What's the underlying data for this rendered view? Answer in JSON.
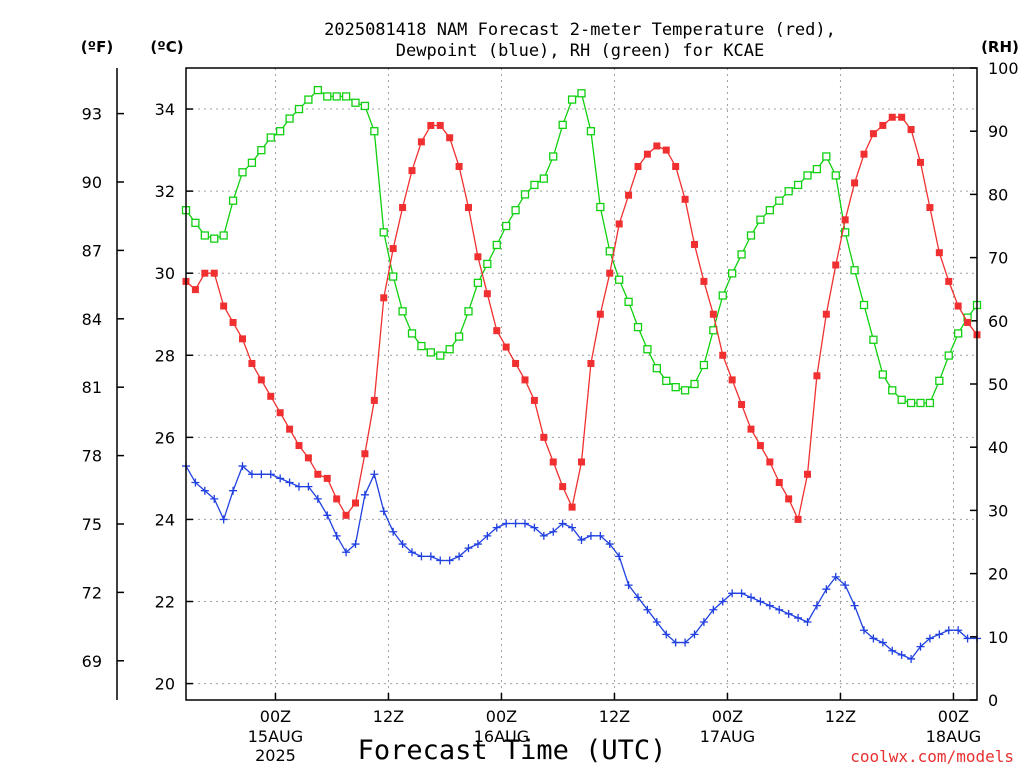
{
  "chart_data": {
    "type": "line",
    "title": [
      "2025081418 NAM Forecast 2-meter Temperature (red),",
      "Dewpoint (blue), RH (green) for KCAE"
    ],
    "xlabel": "Forecast Time (UTC)",
    "x_range_hours": [
      -9.5,
      74.5
    ],
    "x_ticks": [
      {
        "h": 0,
        "label": "00Z",
        "sub": [
          "15AUG",
          "2025"
        ]
      },
      {
        "h": 12,
        "label": "12Z",
        "sub": []
      },
      {
        "h": 24,
        "label": "00Z",
        "sub": [
          "16AUG"
        ]
      },
      {
        "h": 36,
        "label": "12Z",
        "sub": []
      },
      {
        "h": 48,
        "label": "00Z",
        "sub": [
          "17AUG"
        ]
      },
      {
        "h": 60,
        "label": "12Z",
        "sub": []
      },
      {
        "h": 72,
        "label": "00Z",
        "sub": [
          "18AUG"
        ]
      }
    ],
    "y_left_c": {
      "unit": "(ºC)",
      "range": [
        19.6,
        35.0
      ],
      "ticks": [
        20,
        22,
        24,
        26,
        28,
        30,
        32,
        34
      ]
    },
    "y_left_f": {
      "unit": "(ºF)",
      "ticks": [
        69,
        72,
        75,
        78,
        81,
        84,
        87,
        90,
        93
      ]
    },
    "y_right_rh": {
      "unit": "(RH)",
      "range": [
        0,
        100
      ],
      "ticks": [
        0,
        10,
        20,
        30,
        40,
        50,
        60,
        70,
        80,
        90,
        100
      ]
    },
    "grid": true,
    "series": [
      {
        "name": "Temperature",
        "color": "#f03030",
        "marker": "filled-square",
        "axis": "left_c",
        "points": [
          [
            -9.5,
            29.8
          ],
          [
            -8.5,
            29.6
          ],
          [
            -7.5,
            30.0
          ],
          [
            -6.5,
            30.0
          ],
          [
            -5.5,
            29.2
          ],
          [
            -4.5,
            28.8
          ],
          [
            -3.5,
            28.4
          ],
          [
            -2.5,
            27.8
          ],
          [
            -1.5,
            27.4
          ],
          [
            -0.5,
            27.0
          ],
          [
            0.5,
            26.6
          ],
          [
            1.5,
            26.2
          ],
          [
            2.5,
            25.8
          ],
          [
            3.5,
            25.5
          ],
          [
            4.5,
            25.1
          ],
          [
            5.5,
            25.0
          ],
          [
            6.5,
            24.5
          ],
          [
            7.5,
            24.1
          ],
          [
            8.5,
            24.4
          ],
          [
            9.5,
            25.6
          ],
          [
            10.5,
            26.9
          ],
          [
            11.5,
            29.4
          ],
          [
            12.5,
            30.6
          ],
          [
            13.5,
            31.6
          ],
          [
            14.5,
            32.5
          ],
          [
            15.5,
            33.2
          ],
          [
            16.5,
            33.6
          ],
          [
            17.5,
            33.6
          ],
          [
            18.5,
            33.3
          ],
          [
            19.5,
            32.6
          ],
          [
            20.5,
            31.6
          ],
          [
            21.5,
            30.4
          ],
          [
            22.5,
            29.5
          ],
          [
            23.5,
            28.6
          ],
          [
            24.5,
            28.2
          ],
          [
            25.5,
            27.8
          ],
          [
            26.5,
            27.4
          ],
          [
            27.5,
            26.9
          ],
          [
            28.5,
            26.0
          ],
          [
            29.5,
            25.4
          ],
          [
            30.5,
            24.8
          ],
          [
            31.5,
            24.3
          ],
          [
            32.5,
            25.4
          ],
          [
            33.5,
            27.8
          ],
          [
            34.5,
            29.0
          ],
          [
            35.5,
            30.0
          ],
          [
            36.5,
            31.2
          ],
          [
            37.5,
            31.9
          ],
          [
            38.5,
            32.6
          ],
          [
            39.5,
            32.9
          ],
          [
            40.5,
            33.1
          ],
          [
            41.5,
            33.0
          ],
          [
            42.5,
            32.6
          ],
          [
            43.5,
            31.8
          ],
          [
            44.5,
            30.7
          ],
          [
            45.5,
            29.8
          ],
          [
            46.5,
            29.0
          ],
          [
            47.5,
            28.0
          ],
          [
            48.5,
            27.4
          ],
          [
            49.5,
            26.8
          ],
          [
            50.5,
            26.2
          ],
          [
            51.5,
            25.8
          ],
          [
            52.5,
            25.4
          ],
          [
            53.5,
            24.9
          ],
          [
            54.5,
            24.5
          ],
          [
            55.5,
            24.0
          ],
          [
            56.5,
            25.1
          ],
          [
            57.5,
            27.5
          ],
          [
            58.5,
            29.0
          ],
          [
            59.5,
            30.2
          ],
          [
            60.5,
            31.3
          ],
          [
            61.5,
            32.2
          ],
          [
            62.5,
            32.9
          ],
          [
            63.5,
            33.4
          ],
          [
            64.5,
            33.6
          ],
          [
            65.5,
            33.8
          ],
          [
            66.5,
            33.8
          ],
          [
            67.5,
            33.5
          ],
          [
            68.5,
            32.7
          ],
          [
            69.5,
            31.6
          ],
          [
            70.5,
            30.5
          ],
          [
            71.5,
            29.8
          ],
          [
            72.5,
            29.2
          ],
          [
            73.5,
            28.8
          ],
          [
            74.5,
            28.5
          ]
        ]
      },
      {
        "name": "Dewpoint",
        "color": "#2040e0",
        "marker": "plus",
        "axis": "left_c",
        "points": [
          [
            -9.5,
            25.3
          ],
          [
            -8.5,
            24.9
          ],
          [
            -7.5,
            24.7
          ],
          [
            -6.5,
            24.5
          ],
          [
            -5.5,
            24.0
          ],
          [
            -4.5,
            24.7
          ],
          [
            -3.5,
            25.3
          ],
          [
            -2.5,
            25.1
          ],
          [
            -1.5,
            25.1
          ],
          [
            -0.5,
            25.1
          ],
          [
            0.5,
            25.0
          ],
          [
            1.5,
            24.9
          ],
          [
            2.5,
            24.8
          ],
          [
            3.5,
            24.8
          ],
          [
            4.5,
            24.5
          ],
          [
            5.5,
            24.1
          ],
          [
            6.5,
            23.6
          ],
          [
            7.5,
            23.2
          ],
          [
            8.5,
            23.4
          ],
          [
            9.5,
            24.6
          ],
          [
            10.5,
            25.1
          ],
          [
            11.5,
            24.2
          ],
          [
            12.5,
            23.7
          ],
          [
            13.5,
            23.4
          ],
          [
            14.5,
            23.2
          ],
          [
            15.5,
            23.1
          ],
          [
            16.5,
            23.1
          ],
          [
            17.5,
            23.0
          ],
          [
            18.5,
            23.0
          ],
          [
            19.5,
            23.1
          ],
          [
            20.5,
            23.3
          ],
          [
            21.5,
            23.4
          ],
          [
            22.5,
            23.6
          ],
          [
            23.5,
            23.8
          ],
          [
            24.5,
            23.9
          ],
          [
            25.5,
            23.9
          ],
          [
            26.5,
            23.9
          ],
          [
            27.5,
            23.8
          ],
          [
            28.5,
            23.6
          ],
          [
            29.5,
            23.7
          ],
          [
            30.5,
            23.9
          ],
          [
            31.5,
            23.8
          ],
          [
            32.5,
            23.5
          ],
          [
            33.5,
            23.6
          ],
          [
            34.5,
            23.6
          ],
          [
            35.5,
            23.4
          ],
          [
            36.5,
            23.1
          ],
          [
            37.5,
            22.4
          ],
          [
            38.5,
            22.1
          ],
          [
            39.5,
            21.8
          ],
          [
            40.5,
            21.5
          ],
          [
            41.5,
            21.2
          ],
          [
            42.5,
            21.0
          ],
          [
            43.5,
            21.0
          ],
          [
            44.5,
            21.2
          ],
          [
            45.5,
            21.5
          ],
          [
            46.5,
            21.8
          ],
          [
            47.5,
            22.0
          ],
          [
            48.5,
            22.2
          ],
          [
            49.5,
            22.2
          ],
          [
            50.5,
            22.1
          ],
          [
            51.5,
            22.0
          ],
          [
            52.5,
            21.9
          ],
          [
            53.5,
            21.8
          ],
          [
            54.5,
            21.7
          ],
          [
            55.5,
            21.6
          ],
          [
            56.5,
            21.5
          ],
          [
            57.5,
            21.9
          ],
          [
            58.5,
            22.3
          ],
          [
            59.5,
            22.6
          ],
          [
            60.5,
            22.4
          ],
          [
            61.5,
            21.9
          ],
          [
            62.5,
            21.3
          ],
          [
            63.5,
            21.1
          ],
          [
            64.5,
            21.0
          ],
          [
            65.5,
            20.8
          ],
          [
            66.5,
            20.7
          ],
          [
            67.5,
            20.6
          ],
          [
            68.5,
            20.9
          ],
          [
            69.5,
            21.1
          ],
          [
            70.5,
            21.2
          ],
          [
            71.5,
            21.3
          ],
          [
            72.5,
            21.3
          ],
          [
            73.5,
            21.1
          ],
          [
            74.5,
            21.1
          ]
        ]
      },
      {
        "name": "RH",
        "color": "#10d010",
        "marker": "open-square",
        "axis": "right_rh",
        "points": [
          [
            -9.5,
            77.5
          ],
          [
            -8.5,
            75.5
          ],
          [
            -7.5,
            73.5
          ],
          [
            -6.5,
            73.0
          ],
          [
            -5.5,
            73.5
          ],
          [
            -4.5,
            79.0
          ],
          [
            -3.5,
            83.5
          ],
          [
            -2.5,
            85.0
          ],
          [
            -1.5,
            87.0
          ],
          [
            -0.5,
            89.0
          ],
          [
            0.5,
            90.0
          ],
          [
            1.5,
            92.0
          ],
          [
            2.5,
            93.5
          ],
          [
            3.5,
            95.0
          ],
          [
            4.5,
            96.5
          ],
          [
            5.5,
            95.5
          ],
          [
            6.5,
            95.5
          ],
          [
            7.5,
            95.5
          ],
          [
            8.5,
            94.5
          ],
          [
            9.5,
            94.0
          ],
          [
            10.5,
            90.0
          ],
          [
            11.5,
            74.0
          ],
          [
            12.5,
            67.0
          ],
          [
            13.5,
            61.5
          ],
          [
            14.5,
            58.0
          ],
          [
            15.5,
            56.0
          ],
          [
            16.5,
            55.0
          ],
          [
            17.5,
            54.5
          ],
          [
            18.5,
            55.5
          ],
          [
            19.5,
            57.5
          ],
          [
            20.5,
            61.5
          ],
          [
            21.5,
            66.0
          ],
          [
            22.5,
            69.0
          ],
          [
            23.5,
            72.0
          ],
          [
            24.5,
            75.0
          ],
          [
            25.5,
            77.5
          ],
          [
            26.5,
            80.0
          ],
          [
            27.5,
            81.5
          ],
          [
            28.5,
            82.5
          ],
          [
            29.5,
            86.0
          ],
          [
            30.5,
            91.0
          ],
          [
            31.5,
            95.0
          ],
          [
            32.5,
            96.0
          ],
          [
            33.5,
            90.0
          ],
          [
            34.5,
            78.0
          ],
          [
            35.5,
            71.0
          ],
          [
            36.5,
            66.5
          ],
          [
            37.5,
            63.0
          ],
          [
            38.5,
            59.0
          ],
          [
            39.5,
            55.5
          ],
          [
            40.5,
            52.5
          ],
          [
            41.5,
            50.5
          ],
          [
            42.5,
            49.5
          ],
          [
            43.5,
            49.0
          ],
          [
            44.5,
            50.0
          ],
          [
            45.5,
            53.0
          ],
          [
            46.5,
            58.5
          ],
          [
            47.5,
            64.0
          ],
          [
            48.5,
            67.5
          ],
          [
            49.5,
            70.5
          ],
          [
            50.5,
            73.5
          ],
          [
            51.5,
            76.0
          ],
          [
            52.5,
            77.5
          ],
          [
            53.5,
            79.0
          ],
          [
            54.5,
            80.5
          ],
          [
            55.5,
            81.5
          ],
          [
            56.5,
            83.0
          ],
          [
            57.5,
            84.0
          ],
          [
            58.5,
            86.0
          ],
          [
            59.5,
            83.0
          ],
          [
            60.5,
            74.0
          ],
          [
            61.5,
            68.0
          ],
          [
            62.5,
            62.5
          ],
          [
            63.5,
            57.0
          ],
          [
            64.5,
            51.5
          ],
          [
            65.5,
            49.0
          ],
          [
            66.5,
            47.5
          ],
          [
            67.5,
            47.0
          ],
          [
            68.5,
            47.0
          ],
          [
            69.5,
            47.0
          ],
          [
            70.5,
            50.5
          ],
          [
            71.5,
            54.5
          ],
          [
            72.5,
            58.0
          ],
          [
            73.5,
            60.5
          ],
          [
            74.5,
            62.5
          ]
        ]
      }
    ]
  },
  "labels": {
    "title_line1": "2025081418 NAM Forecast 2-meter Temperature (red),",
    "title_line2": "Dewpoint (blue), RH (green) for KCAE",
    "unit_f": "(ºF)",
    "unit_c": "(ºC)",
    "unit_rh": "(RH)",
    "xlabel": "Forecast Time (UTC)",
    "credit": "coolwx.com/models"
  },
  "colors": {
    "temperature": "#f03030",
    "dewpoint": "#2040e0",
    "rh": "#10d010",
    "credit": "#e83030",
    "grid": "#a0a0a0"
  }
}
